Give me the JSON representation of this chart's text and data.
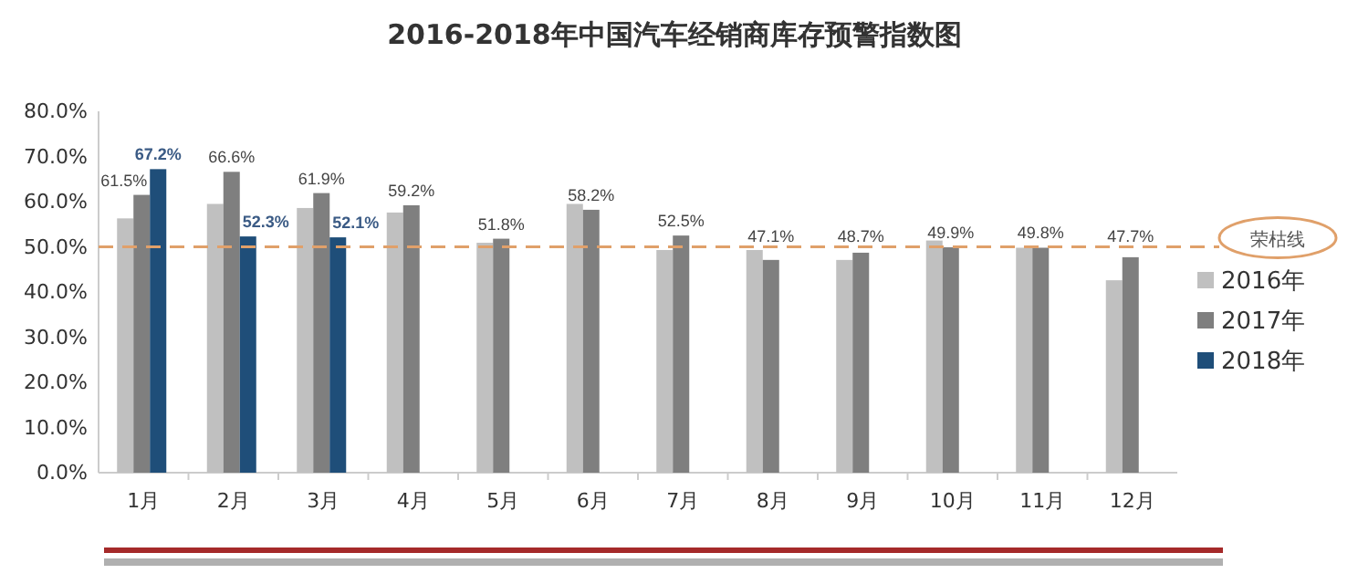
{
  "chart_data": {
    "type": "bar",
    "title": "2016-2018年中国汽车经销商库存预警指数图",
    "categories": [
      "1月",
      "2月",
      "3月",
      "4月",
      "5月",
      "6月",
      "7月",
      "8月",
      "9月",
      "10月",
      "11月",
      "12月"
    ],
    "series": [
      {
        "name": "2016年",
        "color": "#c0c0c0",
        "values": [
          56.3,
          59.5,
          58.6,
          57.6,
          50.9,
          59.5,
          49.3,
          49.3,
          47.1,
          51.4,
          49.8,
          42.6
        ]
      },
      {
        "name": "2017年",
        "color": "#7f7f7f",
        "values": [
          61.5,
          66.6,
          61.9,
          59.2,
          51.8,
          58.2,
          52.5,
          47.1,
          48.7,
          49.9,
          49.8,
          47.7
        ],
        "value_labels": [
          "61.5%",
          "66.6%",
          "61.9%",
          "59.2%",
          "51.8%",
          "58.2%",
          "52.5%",
          "47.1%",
          "48.7%",
          "49.9%",
          "49.8%",
          "47.7%"
        ]
      },
      {
        "name": "2018年",
        "color": "#1f4e79",
        "values": [
          67.2,
          52.3,
          52.1,
          null,
          null,
          null,
          null,
          null,
          null,
          null,
          null,
          null
        ],
        "value_labels": [
          "67.2%",
          "52.3%",
          "52.1%",
          null,
          null,
          null,
          null,
          null,
          null,
          null,
          null,
          null
        ]
      }
    ],
    "ylim": [
      0,
      80
    ],
    "yticks": [
      {
        "value": 0,
        "label": "0.0%"
      },
      {
        "value": 10,
        "label": "10.0%"
      },
      {
        "value": 20,
        "label": "20.0%"
      },
      {
        "value": 30,
        "label": "30.0%"
      },
      {
        "value": 40,
        "label": "40.0%"
      },
      {
        "value": 50,
        "label": "50.0%"
      },
      {
        "value": 60,
        "label": "60.0%"
      },
      {
        "value": 70,
        "label": "70.0%"
      },
      {
        "value": 80,
        "label": "80.0%"
      }
    ],
    "ref_lines": [
      {
        "axis": "y",
        "value": 50,
        "label": "荣枯线",
        "color": "#e0a06a",
        "line_style": "dashed"
      }
    ],
    "legend": "right",
    "grid": false
  }
}
